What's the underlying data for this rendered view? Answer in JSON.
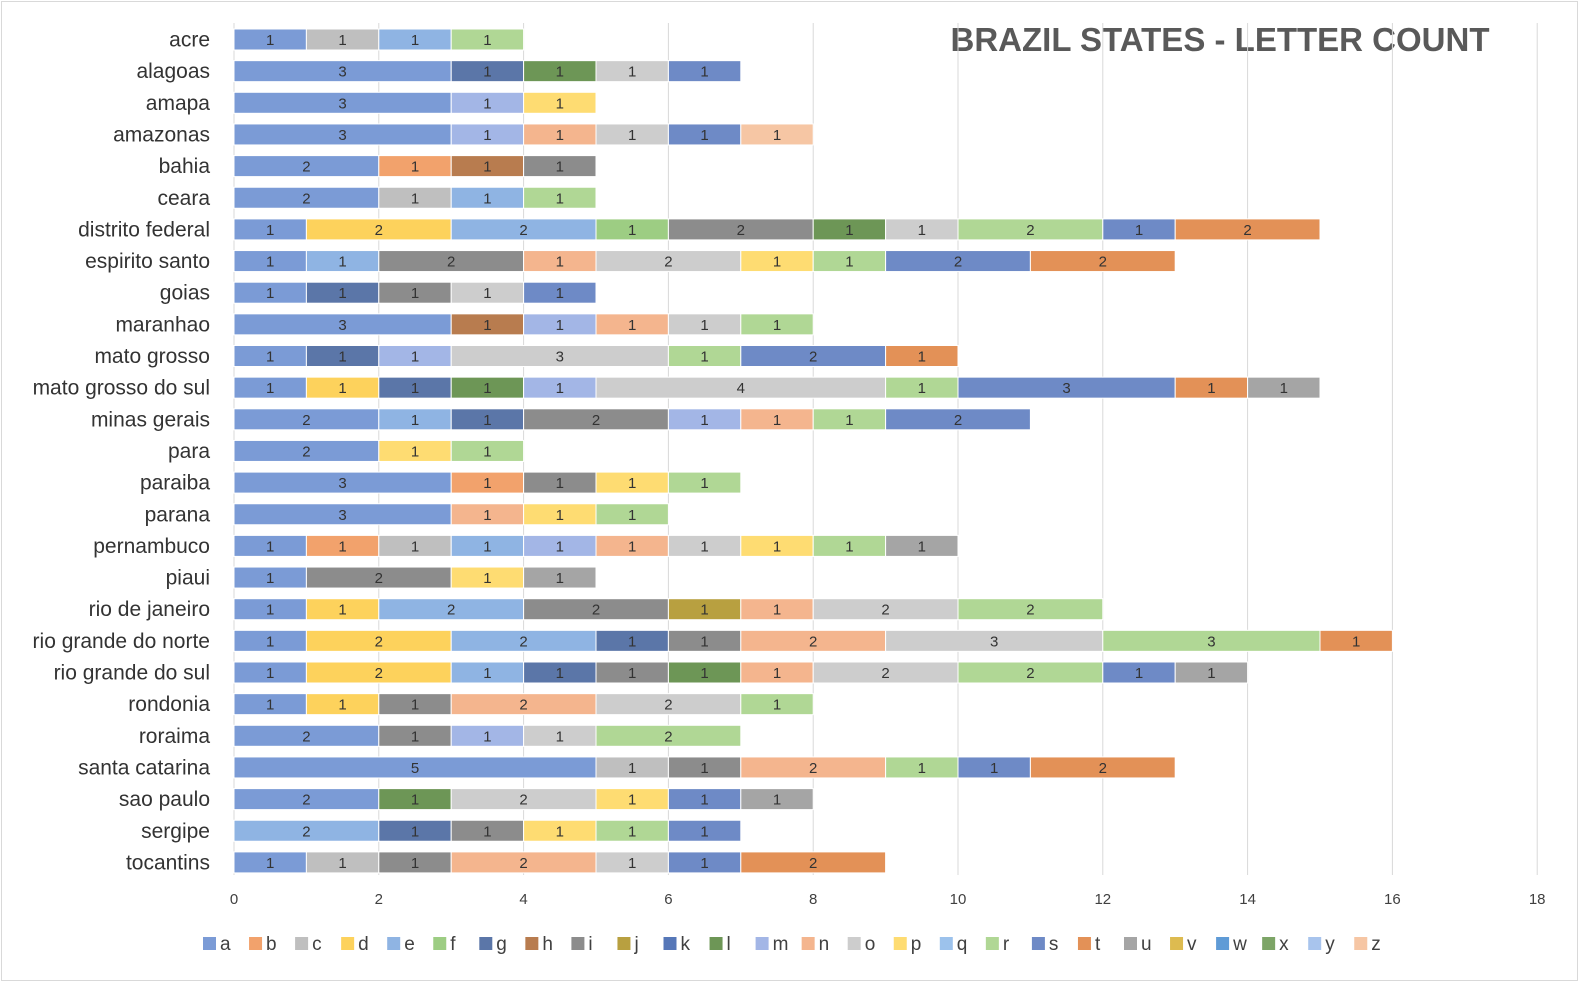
{
  "chart_data": {
    "type": "bar",
    "orientation": "horizontal",
    "stacked": true,
    "title": "BRAZIL STATES - LETTER COUNT",
    "xlim": [
      0,
      18
    ],
    "x_ticks": [
      0,
      2,
      4,
      6,
      8,
      10,
      12,
      14,
      16,
      18
    ],
    "grid": true,
    "legend_position": "bottom",
    "letters": [
      "a",
      "b",
      "c",
      "d",
      "e",
      "f",
      "g",
      "h",
      "i",
      "j",
      "k",
      "l",
      "m",
      "n",
      "o",
      "p",
      "q",
      "r",
      "s",
      "t",
      "u",
      "v",
      "w",
      "x",
      "y",
      "z"
    ],
    "colors": {
      "a": "#7b9bd6",
      "b": "#f2a26c",
      "c": "#bfbfbf",
      "d": "#fdd25c",
      "e": "#8fb4e3",
      "f": "#9dcd83",
      "g": "#5b76a8",
      "h": "#b87c4f",
      "i": "#8c8c8c",
      "j": "#b8a040",
      "k": "#5677b8",
      "l": "#6d9656",
      "m": "#a3b6e6",
      "n": "#f4b58e",
      "o": "#cdcdcd",
      "p": "#fedc72",
      "q": "#9cc2ec",
      "r": "#b0d795",
      "s": "#6e8ac6",
      "t": "#e39157",
      "u": "#a5a5a5",
      "v": "#ddbb50",
      "w": "#5f9bd6",
      "x": "#7da567",
      "y": "#a8c4ed",
      "z": "#f6c6a4"
    },
    "categories": [
      "acre",
      "alagoas",
      "amapa",
      "amazonas",
      "bahia",
      "ceara",
      "distrito federal",
      "espirito santo",
      "goias",
      "maranhao",
      "mato grosso",
      "mato grosso do sul",
      "minas gerais",
      "para",
      "paraiba",
      "parana",
      "pernambuco",
      "piaui",
      "rio de janeiro",
      "rio grande do norte",
      "rio grande do sul",
      "rondonia",
      "roraima",
      "santa catarina",
      "sao paulo",
      "sergipe",
      "tocantins"
    ],
    "rows": [
      [
        [
          "a",
          1
        ],
        [
          "c",
          1
        ],
        [
          "e",
          1
        ],
        [
          "r",
          1
        ]
      ],
      [
        [
          "a",
          3
        ],
        [
          "g",
          1
        ],
        [
          "l",
          1
        ],
        [
          "o",
          1
        ],
        [
          "s",
          1
        ]
      ],
      [
        [
          "a",
          3
        ],
        [
          "m",
          1
        ],
        [
          "p",
          1
        ]
      ],
      [
        [
          "a",
          3
        ],
        [
          "m",
          1
        ],
        [
          "n",
          1
        ],
        [
          "o",
          1
        ],
        [
          "s",
          1
        ],
        [
          "z",
          1
        ]
      ],
      [
        [
          "a",
          2
        ],
        [
          "b",
          1
        ],
        [
          "h",
          1
        ],
        [
          "i",
          1
        ]
      ],
      [
        [
          "a",
          2
        ],
        [
          "c",
          1
        ],
        [
          "e",
          1
        ],
        [
          "r",
          1
        ]
      ],
      [
        [
          "a",
          1
        ],
        [
          "d",
          2
        ],
        [
          "e",
          2
        ],
        [
          "f",
          1
        ],
        [
          "i",
          2
        ],
        [
          "l",
          1
        ],
        [
          "o",
          1
        ],
        [
          "r",
          2
        ],
        [
          "s",
          1
        ],
        [
          "t",
          2
        ]
      ],
      [
        [
          "a",
          1
        ],
        [
          "e",
          1
        ],
        [
          "i",
          2
        ],
        [
          "n",
          1
        ],
        [
          "o",
          2
        ],
        [
          "p",
          1
        ],
        [
          "r",
          1
        ],
        [
          "s",
          2
        ],
        [
          "t",
          2
        ]
      ],
      [
        [
          "a",
          1
        ],
        [
          "g",
          1
        ],
        [
          "i",
          1
        ],
        [
          "o",
          1
        ],
        [
          "s",
          1
        ]
      ],
      [
        [
          "a",
          3
        ],
        [
          "h",
          1
        ],
        [
          "m",
          1
        ],
        [
          "n",
          1
        ],
        [
          "o",
          1
        ],
        [
          "r",
          1
        ]
      ],
      [
        [
          "a",
          1
        ],
        [
          "g",
          1
        ],
        [
          "m",
          1
        ],
        [
          "o",
          3
        ],
        [
          "r",
          1
        ],
        [
          "s",
          2
        ],
        [
          "t",
          1
        ]
      ],
      [
        [
          "a",
          1
        ],
        [
          "d",
          1
        ],
        [
          "g",
          1
        ],
        [
          "l",
          1
        ],
        [
          "m",
          1
        ],
        [
          "o",
          4
        ],
        [
          "r",
          1
        ],
        [
          "s",
          3
        ],
        [
          "t",
          1
        ],
        [
          "u",
          1
        ]
      ],
      [
        [
          "a",
          2
        ],
        [
          "e",
          1
        ],
        [
          "g",
          1
        ],
        [
          "i",
          2
        ],
        [
          "m",
          1
        ],
        [
          "n",
          1
        ],
        [
          "r",
          1
        ],
        [
          "s",
          2
        ]
      ],
      [
        [
          "a",
          2
        ],
        [
          "p",
          1
        ],
        [
          "r",
          1
        ]
      ],
      [
        [
          "a",
          3
        ],
        [
          "b",
          1
        ],
        [
          "i",
          1
        ],
        [
          "p",
          1
        ],
        [
          "r",
          1
        ]
      ],
      [
        [
          "a",
          3
        ],
        [
          "n",
          1
        ],
        [
          "p",
          1
        ],
        [
          "r",
          1
        ]
      ],
      [
        [
          "a",
          1
        ],
        [
          "b",
          1
        ],
        [
          "c",
          1
        ],
        [
          "e",
          1
        ],
        [
          "m",
          1
        ],
        [
          "n",
          1
        ],
        [
          "o",
          1
        ],
        [
          "p",
          1
        ],
        [
          "r",
          1
        ],
        [
          "u",
          1
        ]
      ],
      [
        [
          "a",
          1
        ],
        [
          "i",
          2
        ],
        [
          "p",
          1
        ],
        [
          "u",
          1
        ]
      ],
      [
        [
          "a",
          1
        ],
        [
          "d",
          1
        ],
        [
          "e",
          2
        ],
        [
          "i",
          2
        ],
        [
          "j",
          1
        ],
        [
          "n",
          1
        ],
        [
          "o",
          2
        ],
        [
          "r",
          2
        ]
      ],
      [
        [
          "a",
          1
        ],
        [
          "d",
          2
        ],
        [
          "e",
          2
        ],
        [
          "g",
          1
        ],
        [
          "i",
          1
        ],
        [
          "n",
          2
        ],
        [
          "o",
          3
        ],
        [
          "r",
          3
        ],
        [
          "t",
          1
        ]
      ],
      [
        [
          "a",
          1
        ],
        [
          "d",
          2
        ],
        [
          "e",
          1
        ],
        [
          "g",
          1
        ],
        [
          "i",
          1
        ],
        [
          "l",
          1
        ],
        [
          "n",
          1
        ],
        [
          "o",
          2
        ],
        [
          "r",
          2
        ],
        [
          "s",
          1
        ],
        [
          "u",
          1
        ]
      ],
      [
        [
          "a",
          1
        ],
        [
          "d",
          1
        ],
        [
          "i",
          1
        ],
        [
          "n",
          2
        ],
        [
          "o",
          2
        ],
        [
          "r",
          1
        ]
      ],
      [
        [
          "a",
          2
        ],
        [
          "i",
          1
        ],
        [
          "m",
          1
        ],
        [
          "o",
          1
        ],
        [
          "r",
          2
        ]
      ],
      [
        [
          "a",
          5
        ],
        [
          "c",
          1
        ],
        [
          "i",
          1
        ],
        [
          "n",
          2
        ],
        [
          "r",
          1
        ],
        [
          "s",
          1
        ],
        [
          "t",
          2
        ]
      ],
      [
        [
          "a",
          2
        ],
        [
          "l",
          1
        ],
        [
          "o",
          2
        ],
        [
          "p",
          1
        ],
        [
          "s",
          1
        ],
        [
          "u",
          1
        ]
      ],
      [
        [
          "e",
          2
        ],
        [
          "g",
          1
        ],
        [
          "i",
          1
        ],
        [
          "p",
          1
        ],
        [
          "r",
          1
        ],
        [
          "s",
          1
        ]
      ],
      [
        [
          "a",
          1
        ],
        [
          "c",
          1
        ],
        [
          "i",
          1
        ],
        [
          "n",
          2
        ],
        [
          "o",
          1
        ],
        [
          "s",
          1
        ],
        [
          "t",
          2
        ]
      ]
    ]
  }
}
